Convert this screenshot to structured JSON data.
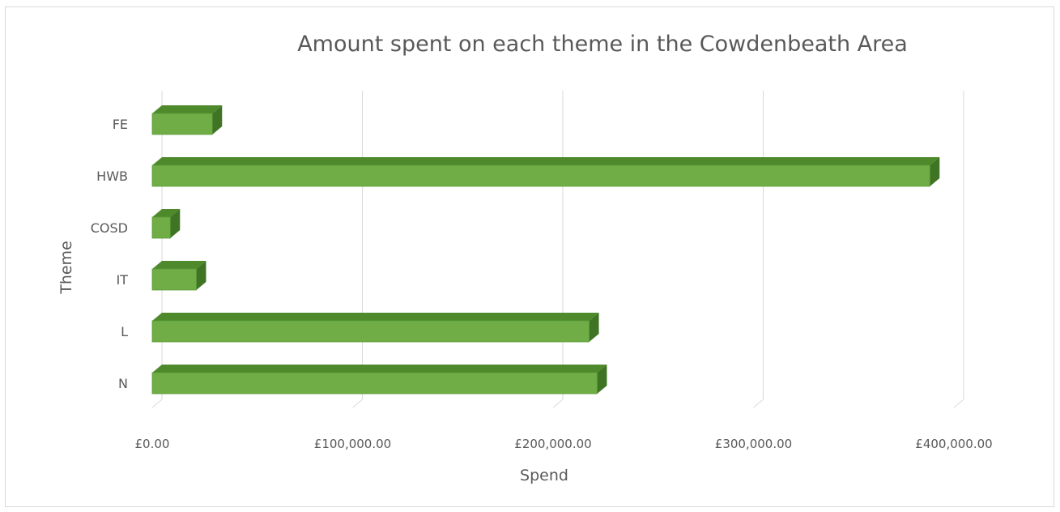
{
  "chart_data": {
    "type": "bar",
    "orientation": "horizontal",
    "title": "Amount spent on each theme in the Cowdenbeath Area",
    "xlabel": "Spend",
    "ylabel": "Theme",
    "categories": [
      "FE",
      "HWB",
      "COSD",
      "IT",
      "L",
      "N"
    ],
    "values": [
      30000,
      388000,
      9000,
      22000,
      218000,
      222000
    ],
    "xlim": [
      0,
      400000
    ],
    "xticks": [
      "£0.00",
      "£100,000.00",
      "£200,000.00",
      "£300,000.00",
      "£400,000.00"
    ],
    "grid": true,
    "legend": "none",
    "bar_color": "#70ad47",
    "bar_top_color": "#4e8a2c",
    "bar_side_color": "#3f7424",
    "bar_edge_color": "#5a9a38"
  }
}
